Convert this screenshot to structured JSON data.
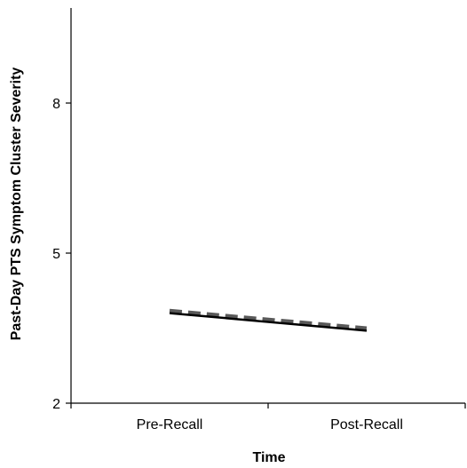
{
  "chart_data": {
    "type": "line",
    "title": "",
    "xlabel": "Time",
    "ylabel": "Past-Day PTS Symptom Cluster Severity",
    "categories": [
      "Pre-Recall",
      "Post-Recall"
    ],
    "y_ticks": [
      2,
      5,
      8
    ],
    "ylim": [
      2,
      9.9
    ],
    "grid": false,
    "legend": "none",
    "series": [
      {
        "style": "dashed",
        "color": "#595959",
        "values": [
          3.85,
          3.5
        ]
      },
      {
        "style": "solid",
        "color": "#000000",
        "values": [
          3.8,
          3.45
        ]
      }
    ]
  }
}
